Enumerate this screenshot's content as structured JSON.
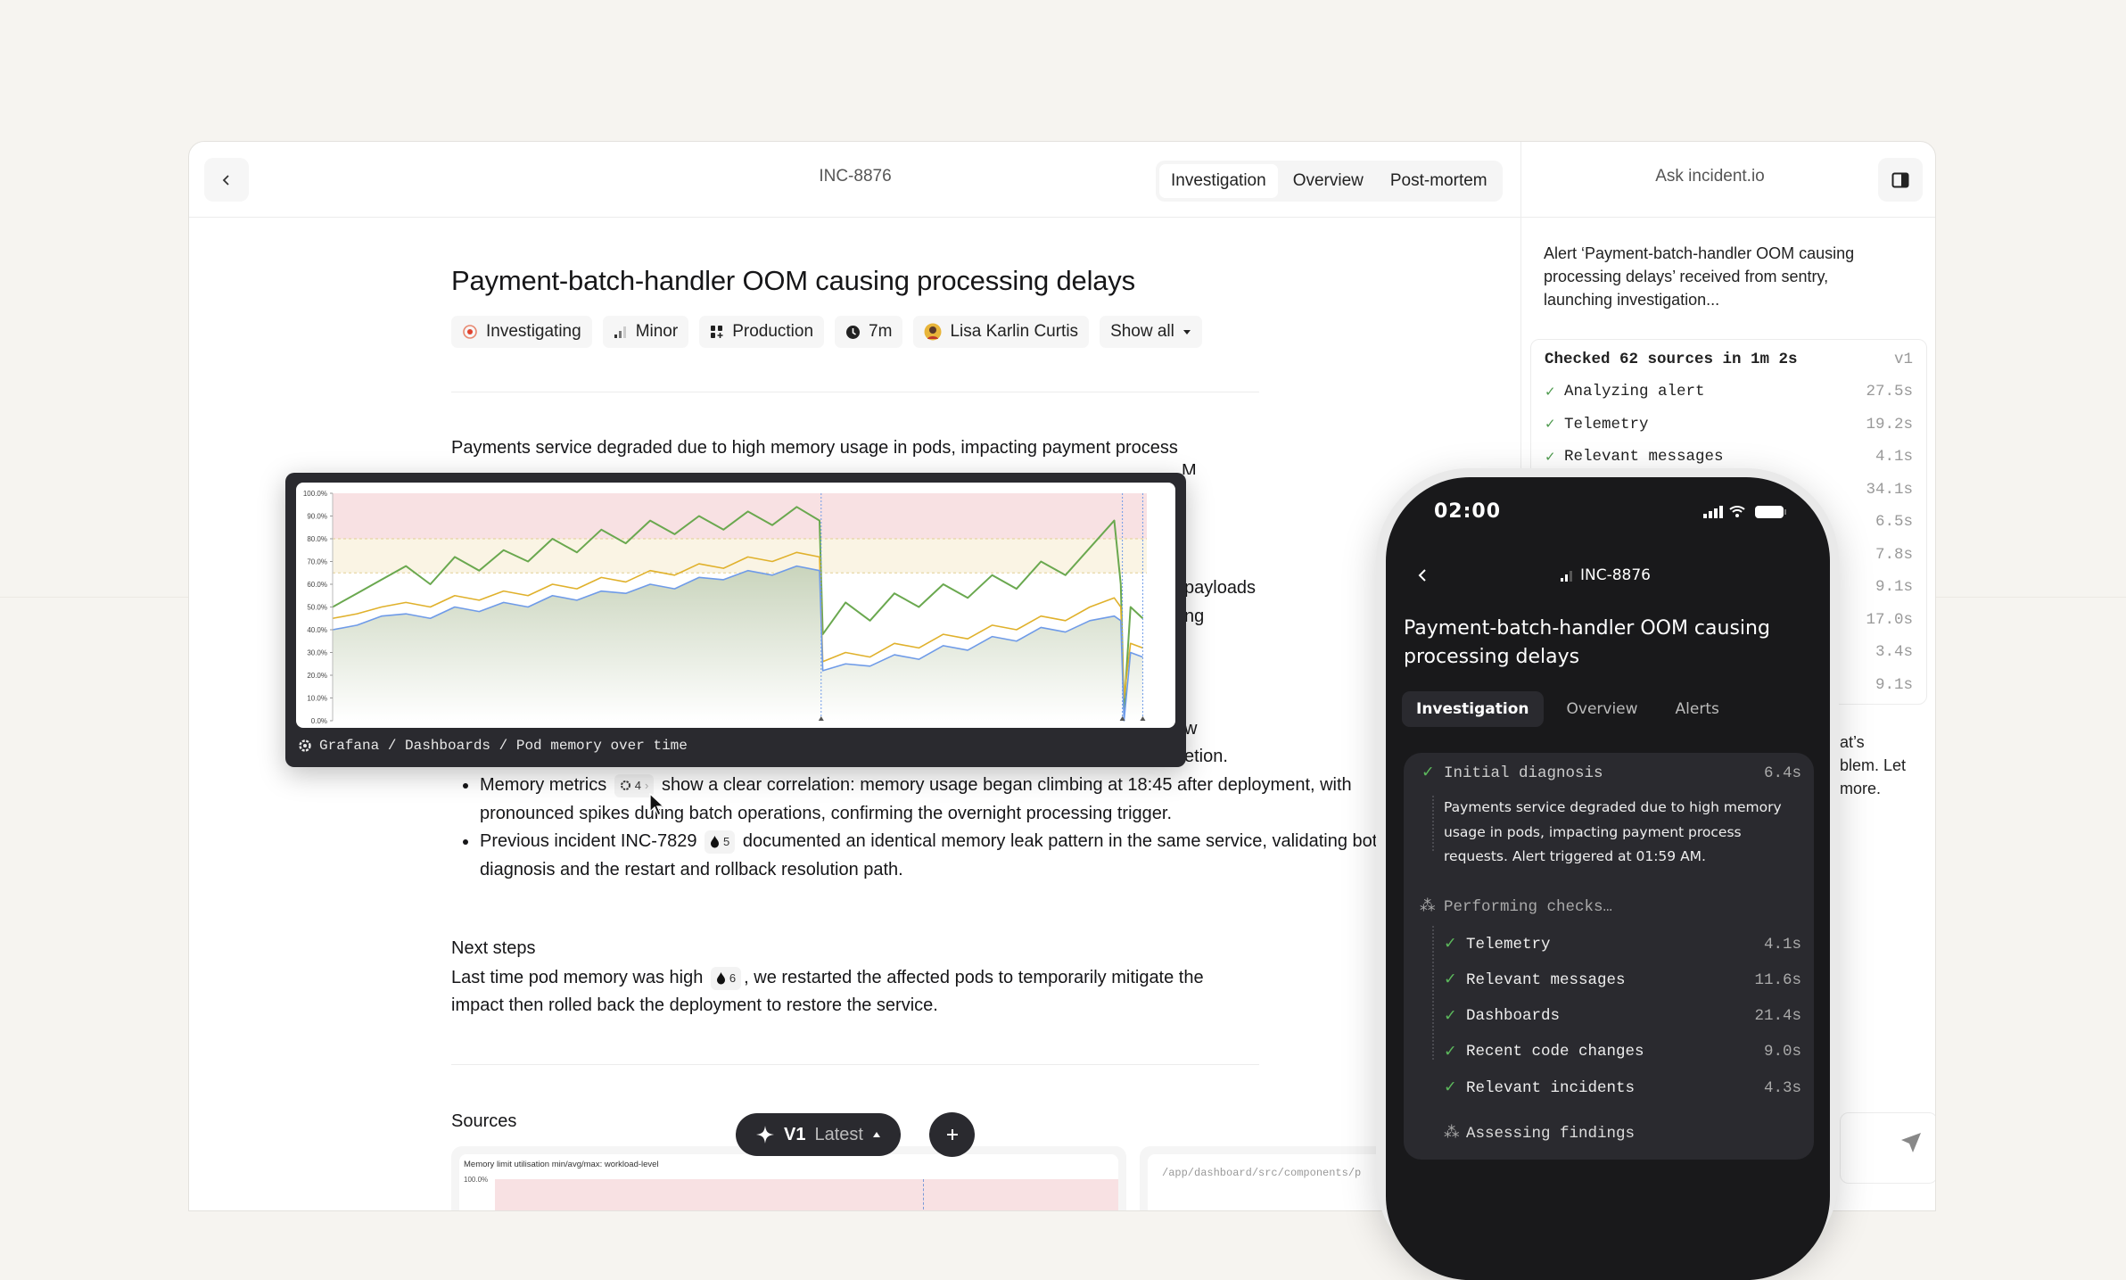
{
  "header": {
    "incident_id": "INC-8876",
    "tabs": [
      "Investigation",
      "Overview",
      "Post-mortem"
    ],
    "active_tab": "Investigation",
    "ask_label": "Ask incident.io"
  },
  "incident": {
    "title": "Payment-batch-handler OOM causing processing delays",
    "pills": {
      "status": "Investigating",
      "severity": "Minor",
      "environment": "Production",
      "duration": "7m",
      "lead": "Lisa Karlin Curtis",
      "show_all": "Show all"
    },
    "summary_line1": "Payments service degraded due to high memory usage in pods, impacting payment process",
    "hidden_fragments": {
      "f1": "M",
      "f2": "payloads",
      "f3": "ng",
      "f4": "w",
      "f5": "etion."
    },
    "bullets": [
      {
        "before": "Memory metrics",
        "cite": "4",
        "after": "show a clear correlation: memory usage began climbing at 18:45 after deployment, with pronounced spikes during batch operations, confirming the overnight processing trigger."
      },
      {
        "before": "Previous incident INC-7829",
        "cite": "5",
        "after": "documented an identical memory leak pattern in the same service, validating both our diagnosis and the restart and rollback resolution path."
      }
    ],
    "next_steps_heading": "Next steps",
    "next_steps_before": "Last time pod memory was high",
    "next_steps_cite": "6",
    "next_steps_after": ", we restarted the affected pods to temporarily mitigate the impact then rolled back the deployment to restore the service.",
    "sources_heading": "Sources",
    "source_cards": [
      {
        "title": "Memory limit utilisation min/avg/max: workload-level",
        "axis_top": "100.0%"
      },
      {
        "path": "/app/dashboard/src/components/p"
      }
    ]
  },
  "chart_overlay": {
    "breadcrumb": "Grafana / Dashboards / Pod memory over time",
    "colors": {
      "max": "#6aa84f",
      "avg": "#e0b12c",
      "min": "#6f9be8",
      "critical_band": "#f8e1e3",
      "warning_band": "#faf4e4"
    }
  },
  "chart_data": {
    "type": "line",
    "title": "",
    "xlabel": "",
    "ylabel": "",
    "ylim": [
      0,
      100
    ],
    "y_ticks": [
      "0.0%",
      "10.0%",
      "20.0%",
      "30.0%",
      "40.0%",
      "50.0%",
      "60.0%",
      "70.0%",
      "80.0%",
      "90.0%",
      "100.0%"
    ],
    "thresholds": {
      "warning": 65,
      "critical": 80
    },
    "annotations_x": [
      60,
      97,
      99.5
    ],
    "x": [
      0,
      3,
      6,
      9,
      12,
      15,
      18,
      21,
      24,
      27,
      30,
      33,
      36,
      39,
      42,
      45,
      48,
      51,
      54,
      57,
      59.8,
      60.2,
      63,
      66,
      69,
      72,
      75,
      78,
      81,
      84,
      87,
      90,
      93,
      96,
      96.8,
      97.2,
      98,
      99.5
    ],
    "series": [
      {
        "key": "max",
        "values": [
          50,
          56,
          62,
          68,
          60,
          72,
          66,
          75,
          70,
          80,
          74,
          84,
          78,
          88,
          82,
          90,
          84,
          92,
          86,
          94,
          88,
          38,
          52,
          44,
          56,
          50,
          60,
          54,
          64,
          58,
          70,
          64,
          76,
          88,
          60,
          5,
          50,
          45
        ]
      },
      {
        "key": "avg",
        "values": [
          45,
          47,
          50,
          52,
          50,
          55,
          53,
          57,
          55,
          60,
          58,
          63,
          61,
          66,
          64,
          69,
          67,
          72,
          70,
          74,
          72,
          26,
          30,
          28,
          34,
          32,
          38,
          36,
          42,
          40,
          46,
          44,
          50,
          54,
          50,
          10,
          34,
          32
        ]
      },
      {
        "key": "min",
        "values": [
          40,
          42,
          46,
          47,
          45,
          50,
          48,
          52,
          50,
          55,
          53,
          57,
          56,
          60,
          58,
          63,
          62,
          66,
          64,
          68,
          66,
          22,
          25,
          24,
          29,
          27,
          33,
          31,
          37,
          35,
          41,
          39,
          44,
          46,
          44,
          0,
          30,
          28
        ]
      }
    ],
    "grid": false,
    "legend": "none"
  },
  "version_pill": {
    "version": "V1",
    "label": "Latest"
  },
  "assistant": {
    "intro": "Alert ‘Payment-batch-handler OOM causing processing delays’ received from sentry, launching investigation...",
    "checked_title": "Checked 62 sources in 1m 2s",
    "checked_version": "v1",
    "checks": [
      {
        "label": "Analyzing alert",
        "time": "27.5s"
      },
      {
        "label": "Telemetry",
        "time": "19.2s"
      },
      {
        "label": "Relevant messages",
        "time": "4.1s"
      },
      {
        "time": "34.1s"
      },
      {
        "time": "6.5s"
      },
      {
        "time": "7.8s"
      },
      {
        "time": "9.1s"
      },
      {
        "time": "17.0s"
      },
      {
        "time": "3.4s"
      },
      {
        "time": "9.1s"
      }
    ],
    "fragments": [
      "at’s",
      "blem. Let",
      "more."
    ]
  },
  "phone": {
    "time": "02:00",
    "incident_id": "INC-8876",
    "title": "Payment-batch-handler OOM causing processing delays",
    "tabs": [
      "Investigation",
      "Overview",
      "Alerts"
    ],
    "initial": {
      "label": "Initial diagnosis",
      "time": "6.4s",
      "text": "Payments service degraded due to high memory usage in pods, impacting payment process requests. Alert triggered at 01:59 AM."
    },
    "performing": "Performing checks…",
    "checks": [
      {
        "label": "Telemetry",
        "time": "4.1s"
      },
      {
        "label": "Relevant messages",
        "time": "11.6s"
      },
      {
        "label": "Dashboards",
        "time": "21.4s"
      },
      {
        "label": "Recent code changes",
        "time": "9.0s"
      },
      {
        "label": "Relevant incidents",
        "time": "4.3s"
      }
    ],
    "assessing": "Assessing findings"
  }
}
